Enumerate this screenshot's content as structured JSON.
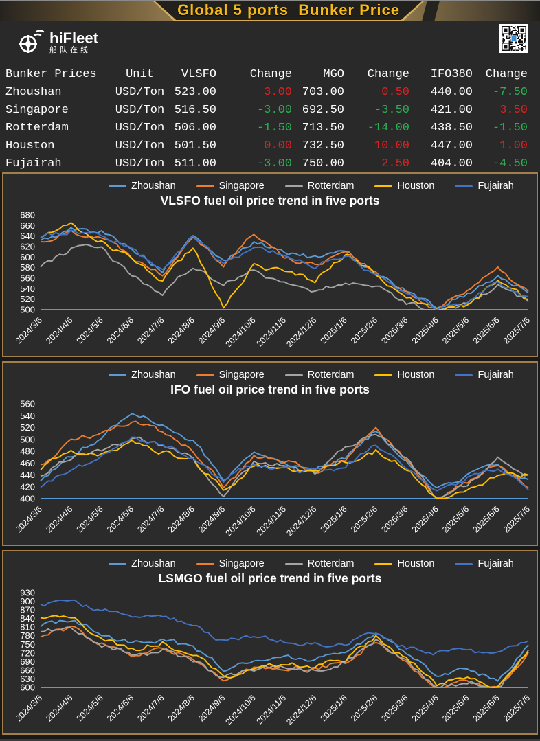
{
  "banner": {
    "title": "Global 5 ports  Bunker Price"
  },
  "brand": {
    "name": "hiFleet",
    "subtitle": "船队在线"
  },
  "table": {
    "headers": [
      "Bunker Prices",
      "Unit",
      "VLSFO",
      "Change",
      "MGO",
      "Change",
      "IFO380",
      "Change"
    ],
    "rows": [
      {
        "port": "Zhoushan",
        "unit": "USD/Ton",
        "vlsfo": "523.00",
        "vlsfo_change": "3.00",
        "mgo": "703.00",
        "mgo_change": "0.50",
        "ifo380": "440.00",
        "ifo380_change": "-7.50"
      },
      {
        "port": "Singapore",
        "unit": "USD/Ton",
        "vlsfo": "516.50",
        "vlsfo_change": "-3.00",
        "mgo": "692.50",
        "mgo_change": "-3.50",
        "ifo380": "421.00",
        "ifo380_change": "3.50"
      },
      {
        "port": "Rotterdam",
        "unit": "USD/Ton",
        "vlsfo": "506.00",
        "vlsfo_change": "-1.50",
        "mgo": "713.50",
        "mgo_change": "-14.00",
        "ifo380": "438.50",
        "ifo380_change": "-1.50"
      },
      {
        "port": "Houston",
        "unit": "USD/Ton",
        "vlsfo": "501.50",
        "vlsfo_change": "0.00",
        "mgo": "732.50",
        "mgo_change": "10.00",
        "ifo380": "447.00",
        "ifo380_change": "1.00"
      },
      {
        "port": "Fujairah",
        "unit": "USD/Ton",
        "vlsfo": "511.00",
        "vlsfo_change": "-3.00",
        "mgo": "750.00",
        "mgo_change": "2.50",
        "ifo380": "404.00",
        "ifo380_change": "-4.50"
      }
    ],
    "colors": {
      "up": "#e02020",
      "down": "#2fae52",
      "text": "#ffffff"
    }
  },
  "chart_data": [
    {
      "type": "line",
      "title": "VLSFO fuel oil price trend in five ports",
      "x": [
        "2024/3/6",
        "2024/4/6",
        "2024/5/6",
        "2024/6/6",
        "2024/7/6",
        "2024/8/6",
        "2024/9/6",
        "2024/10/6",
        "2024/11/6",
        "2024/12/6",
        "2025/1/6",
        "2025/2/6",
        "2025/3/6",
        "2025/4/6",
        "2025/5/6",
        "2025/6/6",
        "2025/7/6"
      ],
      "ylim": [
        500,
        680
      ],
      "ytick_step": 20,
      "grid": false,
      "legend_position": "top",
      "axis_line_color": "#5B9BD5",
      "series": [
        {
          "name": "Zhoushan",
          "color": "#5B9BD5",
          "values": [
            630,
            652,
            648,
            618,
            572,
            638,
            592,
            628,
            612,
            598,
            608,
            572,
            535,
            505,
            530,
            565,
            532
          ]
        },
        {
          "name": "Singapore",
          "color": "#ED7D31",
          "values": [
            628,
            648,
            640,
            602,
            568,
            645,
            585,
            645,
            600,
            585,
            615,
            568,
            530,
            502,
            540,
            575,
            535
          ]
        },
        {
          "name": "Rotterdam",
          "color": "#A5A5A5",
          "values": [
            585,
            615,
            620,
            560,
            532,
            585,
            548,
            572,
            550,
            535,
            555,
            545,
            510,
            500,
            510,
            545,
            515
          ]
        },
        {
          "name": "Houston",
          "color": "#FFC000",
          "values": [
            640,
            662,
            630,
            595,
            558,
            618,
            505,
            585,
            570,
            555,
            605,
            568,
            520,
            500,
            505,
            555,
            520
          ]
        },
        {
          "name": "Fujairah",
          "color": "#4472C4",
          "values": [
            635,
            650,
            645,
            615,
            570,
            640,
            585,
            620,
            605,
            585,
            605,
            565,
            528,
            500,
            512,
            552,
            525
          ]
        }
      ]
    },
    {
      "type": "line",
      "title": "IFO fuel oil price trend in five ports",
      "x": [
        "2024/3/6",
        "2024/4/6",
        "2024/5/6",
        "2024/6/6",
        "2024/7/6",
        "2024/8/6",
        "2024/9/6",
        "2024/10/6",
        "2024/11/6",
        "2024/12/6",
        "2025/1/6",
        "2025/2/6",
        "2025/3/6",
        "2025/4/6",
        "2025/5/6",
        "2025/6/6",
        "2025/7/6"
      ],
      "ylim": [
        400,
        560
      ],
      "ytick_step": 20,
      "grid": false,
      "legend_position": "top",
      "axis_line_color": "#5B9BD5",
      "series": [
        {
          "name": "Zhoushan",
          "color": "#5B9BD5",
          "values": [
            432,
            472,
            502,
            548,
            522,
            500,
            432,
            478,
            462,
            452,
            470,
            515,
            462,
            415,
            438,
            455,
            432
          ]
        },
        {
          "name": "Singapore",
          "color": "#ED7D31",
          "values": [
            455,
            495,
            512,
            532,
            512,
            480,
            422,
            470,
            465,
            445,
            465,
            520,
            465,
            405,
            430,
            460,
            418
          ]
        },
        {
          "name": "Rotterdam",
          "color": "#A5A5A5",
          "values": [
            440,
            470,
            482,
            500,
            490,
            468,
            400,
            465,
            455,
            440,
            490,
            508,
            470,
            400,
            425,
            465,
            440
          ]
        },
        {
          "name": "Houston",
          "color": "#FFC000",
          "values": [
            450,
            482,
            475,
            495,
            480,
            465,
            415,
            455,
            450,
            445,
            460,
            480,
            450,
            400,
            412,
            440,
            440
          ]
        },
        {
          "name": "Fujairah",
          "color": "#4472C4",
          "values": [
            418,
            450,
            470,
            505,
            490,
            468,
            430,
            460,
            450,
            445,
            455,
            490,
            450,
            415,
            435,
            450,
            415
          ]
        }
      ]
    },
    {
      "type": "line",
      "title": "LSMGO fuel oil price trend in five ports",
      "x": [
        "2024/3/6",
        "2024/4/6",
        "2024/5/6",
        "2024/6/6",
        "2024/7/6",
        "2024/8/6",
        "2024/9/6",
        "2024/10/6",
        "2024/11/6",
        "2024/12/6",
        "2025/1/6",
        "2025/2/6",
        "2025/3/6",
        "2025/4/6",
        "2025/5/6",
        "2025/6/6",
        "2025/7/6"
      ],
      "ylim": [
        600,
        930
      ],
      "ytick_step": 30,
      "grid": false,
      "legend_position": "top",
      "axis_line_color": "#5B9BD5",
      "series": [
        {
          "name": "Zhoushan",
          "color": "#5B9BD5",
          "values": [
            818,
            832,
            788,
            758,
            768,
            738,
            668,
            692,
            700,
            702,
            722,
            778,
            718,
            640,
            660,
            628,
            748
          ]
        },
        {
          "name": "Singapore",
          "color": "#ED7D31",
          "values": [
            782,
            810,
            752,
            712,
            730,
            700,
            625,
            668,
            672,
            665,
            690,
            760,
            680,
            605,
            625,
            600,
            722
          ]
        },
        {
          "name": "Rotterdam",
          "color": "#A5A5A5",
          "values": [
            800,
            805,
            748,
            710,
            728,
            698,
            630,
            660,
            668,
            660,
            688,
            765,
            690,
            600,
            618,
            600,
            730
          ]
        },
        {
          "name": "Houston",
          "color": "#FFC000",
          "values": [
            838,
            845,
            775,
            730,
            758,
            718,
            638,
            665,
            680,
            672,
            700,
            775,
            700,
            610,
            635,
            605,
            725
          ]
        },
        {
          "name": "Fujairah",
          "color": "#4472C4",
          "values": [
            888,
            895,
            872,
            838,
            852,
            820,
            762,
            775,
            762,
            748,
            752,
            788,
            742,
            722,
            725,
            722,
            762
          ]
        }
      ]
    }
  ]
}
